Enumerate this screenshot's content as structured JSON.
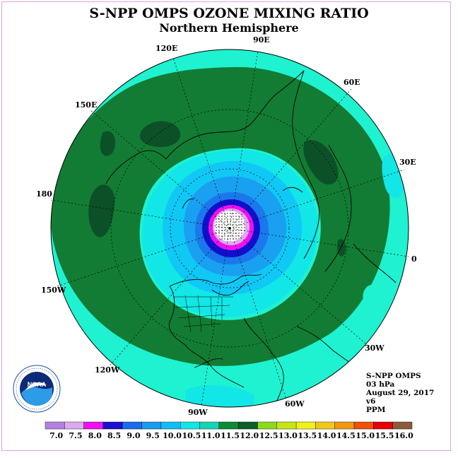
{
  "title": "S-NPP OMPS OZONE MIXING RATIO",
  "subtitle": "Northern Hemisphere",
  "longitude_labels": {
    "e120": "120E",
    "e90": "90E",
    "e60": "60E",
    "e30": "30E",
    "e150": "150E",
    "d180": "180",
    "d0": "0",
    "w150": "150W",
    "w120": "120W",
    "w90": "90W",
    "w60": "60W",
    "w30": "30W"
  },
  "info": {
    "instrument": "S-NPP OMPS",
    "level": "03 hPa",
    "date": "August 29, 2017",
    "version": "v6",
    "units": "PPM"
  },
  "logo_text": "NOAA",
  "colorbar": {
    "labels": [
      "7.0",
      "7.5",
      "8.0",
      "8.5",
      "9.0",
      "9.5",
      "10.0",
      "10.5",
      "11.0",
      "11.5",
      "12.0",
      "12.5",
      "13.0",
      "13.5",
      "14.0",
      "14.5",
      "15.0",
      "15.5",
      "16.0"
    ],
    "colors": [
      "#b37fe0",
      "#dcaaf0",
      "#f010f0",
      "#1a10d0",
      "#1a6ce8",
      "#1a9af0",
      "#10bef5",
      "#12e6e6",
      "#14d4b4",
      "#0f8a35",
      "#0c5e26",
      "#8ed81e",
      "#c6e614",
      "#f0f01a",
      "#f0c81a",
      "#f0960f",
      "#f0500a",
      "#e6000a",
      "#8c5a3c"
    ]
  },
  "map_colors": {
    "level_11_0": "#1ff2d0",
    "level_11_5": "#127c34",
    "level_12_0": "#0c5028",
    "level_10_5": "#12e6e6",
    "level_10_0": "#10c8f5",
    "level_9_5": "#1aa0f0",
    "level_9_0": "#1a78ec",
    "level_8_5": "#1010cc",
    "level_8_0": "#f010f0",
    "level_7_5": "#dcaaf0",
    "level_7_0": "#b37fe0"
  }
}
